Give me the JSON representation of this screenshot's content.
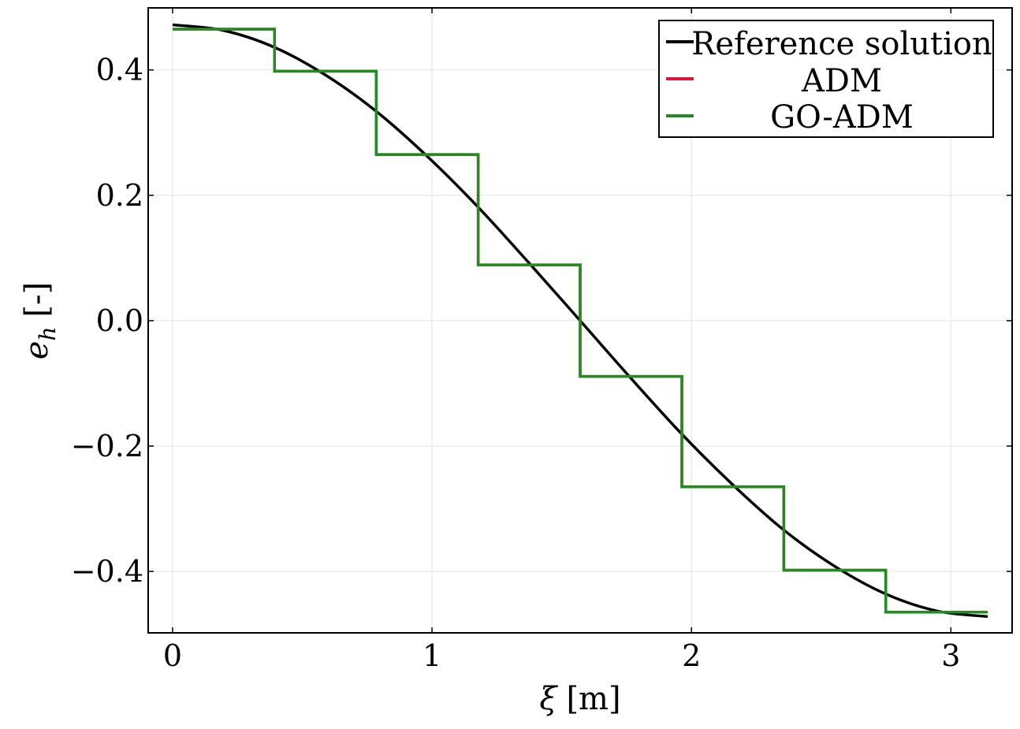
{
  "chart_data": {
    "type": "line",
    "title": "",
    "xlabel_main": "ξ",
    "xlabel_unit": "[m]",
    "ylabel_main": "e",
    "ylabel_sub": "h",
    "ylabel_unit": "[-]",
    "xlim": [
      -0.094,
      3.236
    ],
    "ylim": [
      -0.498,
      0.499
    ],
    "grid": true,
    "legend_position": "top-right",
    "xticks": [
      0,
      1,
      2,
      3
    ],
    "xtick_labels": [
      "0",
      "1",
      "2",
      "3"
    ],
    "yticks": [
      0.4,
      0.2,
      0.0,
      -0.2,
      -0.4
    ],
    "ytick_labels": [
      "0.4",
      "0.2",
      "0.0",
      "−0.2",
      "−0.4"
    ],
    "series": [
      {
        "name": "Reference solution",
        "color": "#000000",
        "kind": "line",
        "x": [
          0,
          0.196,
          0.393,
          0.589,
          0.785,
          0.982,
          1.178,
          1.374,
          1.571,
          1.767,
          1.963,
          2.16,
          2.356,
          2.553,
          2.749,
          2.945,
          3.142
        ],
        "y": [
          0.472,
          0.463,
          0.436,
          0.392,
          0.334,
          0.262,
          0.181,
          0.092,
          0.0,
          -0.092,
          -0.181,
          -0.262,
          -0.334,
          -0.392,
          -0.436,
          -0.463,
          -0.472
        ]
      },
      {
        "name": "ADM",
        "color": "#dc143c",
        "kind": "step",
        "edges": [
          0,
          0.393,
          0.785,
          1.178,
          1.571,
          1.963,
          2.356,
          2.749,
          3.142
        ],
        "values": [
          0.465,
          0.398,
          0.265,
          0.089,
          -0.089,
          -0.265,
          -0.398,
          -0.465
        ]
      },
      {
        "name": "GO-ADM",
        "color": "#228b22",
        "kind": "step",
        "edges": [
          0,
          0.393,
          0.785,
          1.178,
          1.571,
          1.963,
          2.356,
          2.749,
          3.142
        ],
        "values": [
          0.465,
          0.398,
          0.265,
          0.089,
          -0.089,
          -0.265,
          -0.398,
          -0.465
        ]
      }
    ]
  }
}
